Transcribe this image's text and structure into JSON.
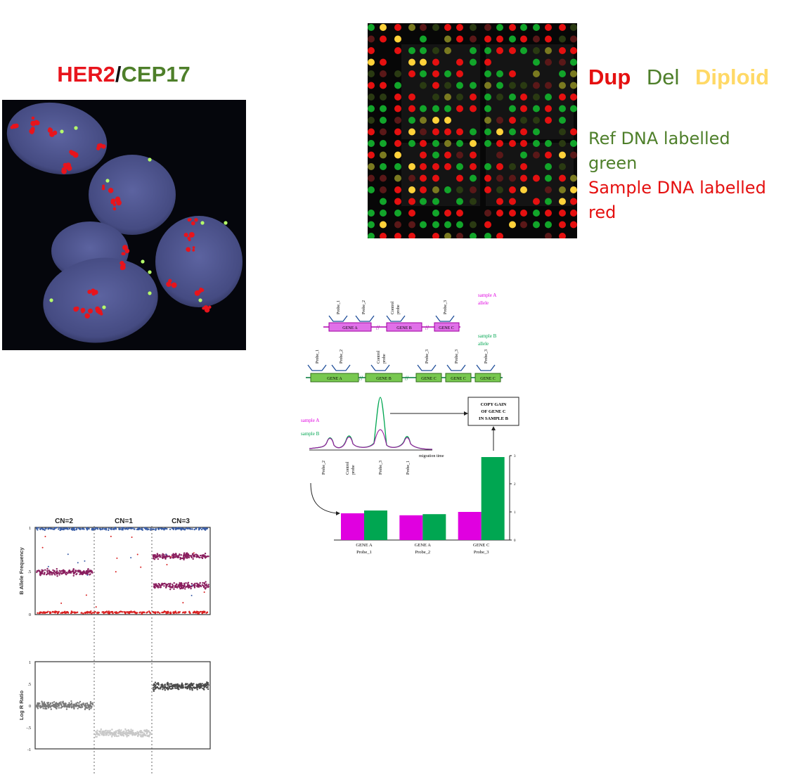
{
  "fish": {
    "title_her2": "HER2",
    "title_sep": "/",
    "title_cep17": "CEP17",
    "colors": {
      "her2": "#e8141c",
      "cep17": "#4e7f2a",
      "nucleus": "#4a4f86"
    }
  },
  "array": {
    "legend": {
      "dup": "Dup",
      "del": "Del",
      "diploid": "Diploid"
    },
    "colors": {
      "dup": "#e51010",
      "del": "#4e7f2a",
      "diploid": "#ffd966"
    },
    "notes": {
      "ref_line1": "Ref DNA labelled",
      "ref_line2": "green",
      "sample_line1": "Sample DNA labelled",
      "sample_line2": "red"
    }
  },
  "mlpa": {
    "sample_a": {
      "label_line1": "sample A",
      "label_line2": "allele",
      "color": "#e000e0"
    },
    "sample_b": {
      "label_line1": "sample B",
      "label_line2": "allele",
      "color": "#00a651"
    },
    "probes": {
      "p1": "Probe_1",
      "p2": "Probe_2",
      "p3": "Probe_3",
      "control_line1": "Control",
      "control_line2": "probe"
    },
    "genes": {
      "a": "GENE A",
      "b": "GENE B",
      "c": "GENE C"
    },
    "trace_labels": {
      "a": "sample A",
      "b": "sample B",
      "xaxis": "migration time"
    },
    "peak_labels": {
      "p2": "Probe_2",
      "control_line1": "Control",
      "control_line2": "probe",
      "p3": "Probe_3",
      "p1": "Probe_1"
    },
    "result_box": {
      "line1": "COPY GAIN",
      "line2": "OF GENE C",
      "line3": "IN SAMPLE B"
    },
    "bar_labels": [
      {
        "gene": "GENE A",
        "probe": "Probe_1"
      },
      {
        "gene": "GENE A",
        "probe": "Probe_2"
      },
      {
        "gene": "GENE C",
        "probe": "Probe_3"
      }
    ],
    "y_ticks": [
      "0",
      "1",
      "2",
      "3"
    ]
  },
  "chart_data": {
    "type": "bar",
    "categories": [
      "GENE A Probe_1",
      "GENE A Probe_2",
      "GENE C Probe_3"
    ],
    "series": [
      {
        "name": "sample A",
        "values": [
          0.95,
          0.88,
          1.0
        ]
      },
      {
        "name": "sample B",
        "values": [
          1.05,
          0.92,
          2.95
        ]
      }
    ],
    "ylim": [
      0,
      3
    ]
  },
  "snp": {
    "segments": [
      "CN=2",
      "CN=1",
      "CN=3"
    ],
    "baf_ylabel": "B Allele Frequency",
    "lrr_ylabel": "Log R Ratio",
    "baf_ticks": [
      "1",
      ".5",
      "0"
    ],
    "lrr_ticks": [
      "1",
      ".5",
      "0",
      "-.5",
      "-1"
    ],
    "colors": {
      "top": "#3b5fa8",
      "het": "#8a1f5f",
      "bottom": "#d92020",
      "lrr2": "#7a7a7a",
      "lrr1": "#c8c8c8",
      "lrr3": "#4a4a4a"
    }
  }
}
